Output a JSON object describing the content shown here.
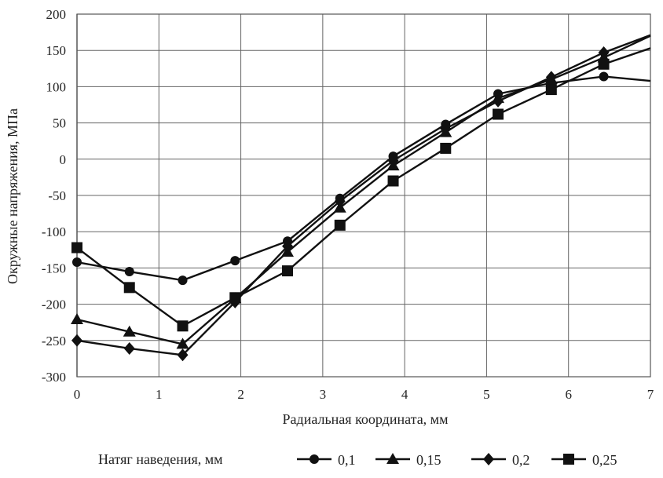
{
  "chart_data": {
    "type": "line",
    "xlabel": "Радиальная координата, мм",
    "ylabel": "Окружные напряжения, МПа",
    "xlim": [
      0,
      7
    ],
    "ylim": [
      -300,
      200
    ],
    "x_ticks": [
      "0",
      "1",
      "2",
      "3",
      "4",
      "5",
      "6",
      "7"
    ],
    "y_ticks": [
      "200",
      "150",
      "100",
      "50",
      "0",
      "-50",
      "-100",
      "-150",
      "-200",
      "-250",
      "-300"
    ],
    "grid": true,
    "legend_title": "Натяг наведения, мм",
    "legend_position": "bottom",
    "series": [
      {
        "name": "0,1",
        "marker": "circle",
        "x": [
          0,
          0.64,
          1.29,
          1.93,
          2.57,
          3.21,
          3.86,
          4.5,
          5.14,
          5.79,
          6.43,
          7.0
        ],
        "y": [
          -142,
          -155,
          -167,
          -140,
          -113,
          -54,
          4,
          48,
          90,
          105,
          114,
          108
        ]
      },
      {
        "name": "0,15",
        "marker": "triangle",
        "x": [
          0,
          0.64,
          1.29,
          1.93,
          2.57,
          3.21,
          3.86,
          4.5,
          5.14,
          5.79,
          6.43,
          7.0
        ],
        "y": [
          -221,
          -238,
          -255,
          -192,
          -128,
          -67,
          -9,
          37,
          84,
          110,
          140,
          170
        ]
      },
      {
        "name": "0,2",
        "marker": "diamond",
        "x": [
          0,
          0.64,
          1.29,
          1.93,
          2.57,
          3.21,
          3.86,
          4.5,
          5.14,
          5.79,
          6.43,
          7.0
        ],
        "y": [
          -250,
          -261,
          -270,
          -197,
          -120,
          -58,
          -2,
          42,
          80,
          113,
          147,
          171
        ]
      },
      {
        "name": "0,25",
        "marker": "square",
        "x": [
          0,
          0.64,
          1.29,
          1.93,
          2.57,
          3.21,
          3.86,
          4.5,
          5.14,
          5.79,
          6.43,
          7.0
        ],
        "y": [
          -122,
          -177,
          -230,
          -191,
          -154,
          -91,
          -30,
          15,
          62,
          96,
          131,
          153
        ]
      }
    ]
  }
}
